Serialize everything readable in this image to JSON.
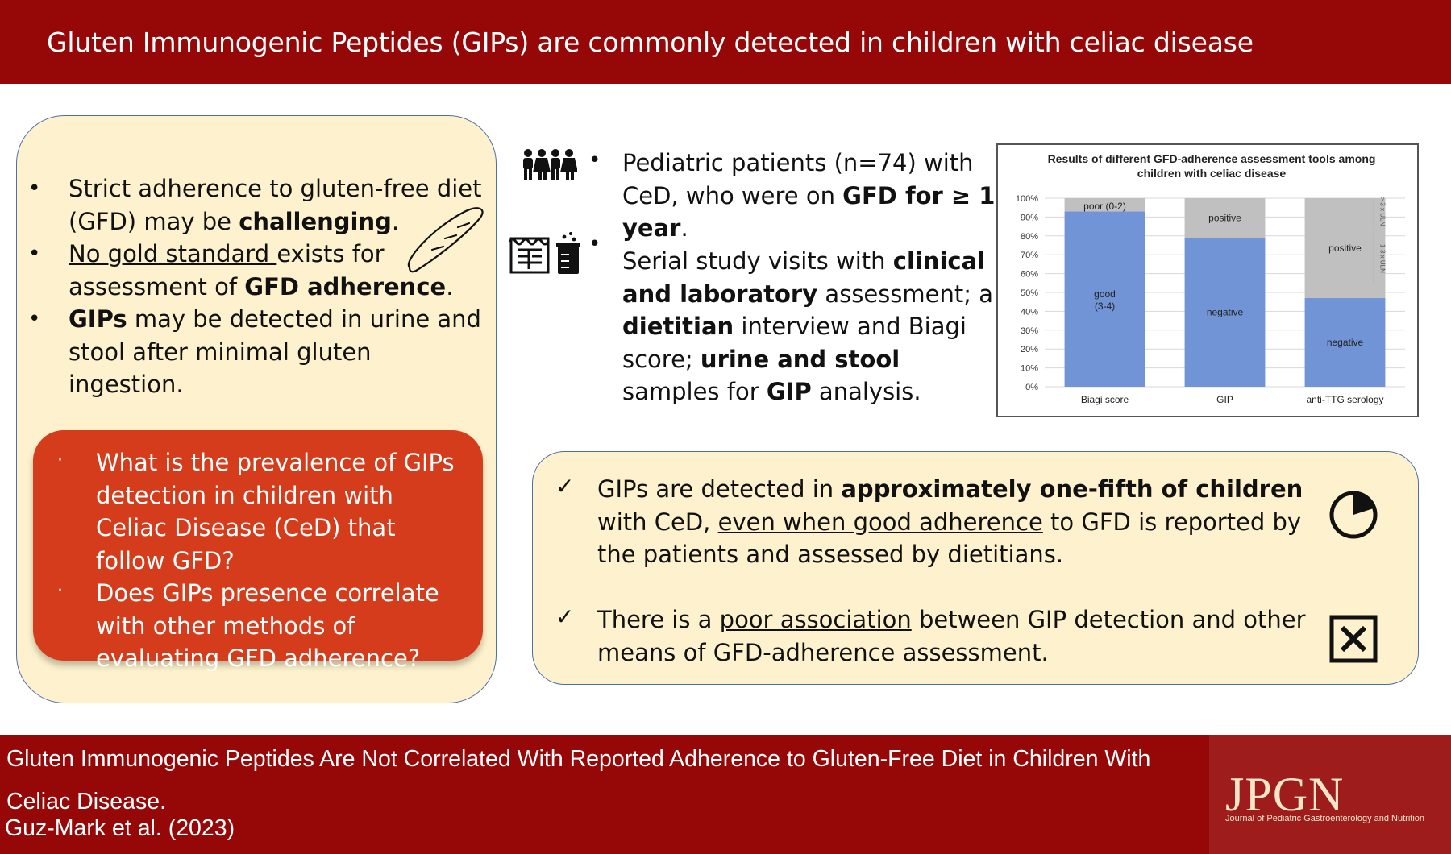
{
  "header": {
    "title": "Gluten Immunogenic Peptides (GIPs) are commonly detected in children with celiac disease"
  },
  "background": {
    "b1_pre": "Strict adherence to gluten-free diet (GFD) may be ",
    "b1_bold": "challenging",
    "b1_post": ".",
    "b2_u": "No gold standard ",
    "b2_mid": "exists for assessment of ",
    "b2_bold": "GFD adherence",
    "b2_post": ".",
    "b3_bold": "GIPs",
    "b3_post": " may be detected in urine and stool after minimal gluten ingestion."
  },
  "questions": {
    "q1": "What is the prevalence of GIPs detection in children with Celiac Disease (CeD) that follow GFD?",
    "q2": "Does GIPs presence correlate with other methods of evaluating GFD adherence?"
  },
  "methods": {
    "m1_pre": "Pediatric patients (n=74) with CeD, who were on ",
    "m1_bold": "GFD for ≥ 1 year",
    "m1_post": ".",
    "m2_pre": "Serial study visits with ",
    "m2_b1": "clinical and laboratory",
    "m2_mid1": " assessment; a ",
    "m2_b2": "dietitian",
    "m2_mid2": " interview and Biagi score; ",
    "m2_b3": "urine and stool",
    "m2_mid3": " samples for ",
    "m2_b4": "GIP",
    "m2_post": " analysis."
  },
  "chart_data": {
    "type": "bar",
    "stacked": true,
    "title": "Results of different GFD-adherence assessment tools among children with celiac disease",
    "categories": [
      "Biagi score",
      "GIP",
      "anti-TTG serology"
    ],
    "y_ticks": [
      "0%",
      "10%",
      "20%",
      "30%",
      "40%",
      "50%",
      "60%",
      "70%",
      "80%",
      "90%",
      "100%"
    ],
    "ylim": [
      0,
      100
    ],
    "series": [
      {
        "name": "lower",
        "color": "#7194d6",
        "values": [
          93,
          79,
          47
        ],
        "labels": [
          "good (3-4)",
          "negative",
          "negative"
        ]
      },
      {
        "name": "upper",
        "color": "#c0c0c0",
        "values": [
          7,
          21,
          53
        ],
        "labels": [
          "poor (0-2)",
          "positive",
          "positive"
        ]
      }
    ],
    "side_labels": [
      "> 3 x ULN",
      "1-3 x ULN"
    ]
  },
  "findings": {
    "f1_pre": "GIPs are detected in ",
    "f1_bold": "approximately one-fifth of children",
    "f1_mid": " with CeD, ",
    "f1_u": "even when good adherence",
    "f1_post": " to GFD is reported by the patients and assessed by dietitians.",
    "f2_pre": "There is a ",
    "f2_u": "poor association",
    "f2_post": " between GIP detection and other means of GFD-adherence assessment."
  },
  "footer": {
    "paper_title": "Gluten Immunogenic Peptides Are Not Correlated With Reported Adherence to Gluten-Free Diet in Children With Celiac Disease.",
    "citation": "Guz-Mark et al. (2023)",
    "logo": "JPGN",
    "logo_sub": "Journal of Pediatric Gastroenterology and Nutrition"
  },
  "colors": {
    "banner": "#960808",
    "panel": "#fdf2cd",
    "question": "#d43c1c",
    "border": "#4d6ea8"
  }
}
